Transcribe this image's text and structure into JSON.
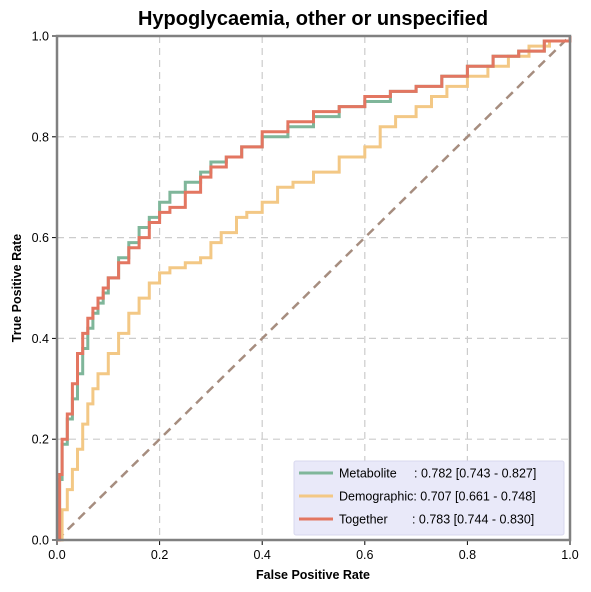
{
  "chart_data": {
    "type": "line",
    "title": "Hypoglycaemia, other or unspecified",
    "xlabel": "False Positive Rate",
    "ylabel": "True Positive Rate",
    "xlim": [
      0,
      1
    ],
    "ylim": [
      0,
      1
    ],
    "xticks": [
      "0.0",
      "0.2",
      "0.4",
      "0.6",
      "0.8",
      "1.0"
    ],
    "yticks": [
      "0.0",
      "0.2",
      "0.4",
      "0.6",
      "0.8",
      "1.0"
    ],
    "grid": true,
    "legend_position": "lower-right",
    "diagonal": {
      "x": [
        0,
        1
      ],
      "y": [
        0,
        1
      ],
      "color": "#a68d7f",
      "style": "dashed"
    },
    "series": [
      {
        "name": "Metabolite",
        "legend_label": "Metabolite     : 0.782 [0.743 - 0.827]",
        "color": "#7fb69a",
        "x": [
          0.0,
          0.005,
          0.01,
          0.02,
          0.03,
          0.04,
          0.05,
          0.06,
          0.07,
          0.08,
          0.09,
          0.1,
          0.12,
          0.14,
          0.16,
          0.18,
          0.2,
          0.22,
          0.25,
          0.28,
          0.3,
          0.33,
          0.36,
          0.4,
          0.45,
          0.5,
          0.55,
          0.6,
          0.65,
          0.7,
          0.75,
          0.8,
          0.85,
          0.9,
          0.95,
          1.0
        ],
        "y": [
          0.0,
          0.12,
          0.19,
          0.24,
          0.28,
          0.33,
          0.38,
          0.42,
          0.45,
          0.47,
          0.49,
          0.52,
          0.56,
          0.59,
          0.62,
          0.64,
          0.67,
          0.69,
          0.71,
          0.73,
          0.75,
          0.76,
          0.78,
          0.8,
          0.82,
          0.84,
          0.86,
          0.87,
          0.89,
          0.9,
          0.92,
          0.94,
          0.96,
          0.97,
          0.99,
          1.0
        ]
      },
      {
        "name": "Demographic",
        "legend_label": "Demographic: 0.707 [0.661 - 0.748]",
        "color": "#f3c885",
        "x": [
          0.0,
          0.01,
          0.02,
          0.03,
          0.04,
          0.05,
          0.06,
          0.07,
          0.08,
          0.1,
          0.12,
          0.14,
          0.16,
          0.18,
          0.2,
          0.22,
          0.25,
          0.28,
          0.3,
          0.32,
          0.35,
          0.37,
          0.4,
          0.43,
          0.46,
          0.5,
          0.55,
          0.6,
          0.63,
          0.66,
          0.7,
          0.73,
          0.76,
          0.8,
          0.84,
          0.88,
          0.92,
          0.96,
          1.0
        ],
        "y": [
          0.0,
          0.06,
          0.1,
          0.14,
          0.18,
          0.23,
          0.27,
          0.3,
          0.33,
          0.37,
          0.41,
          0.45,
          0.48,
          0.51,
          0.53,
          0.54,
          0.55,
          0.56,
          0.59,
          0.61,
          0.64,
          0.65,
          0.67,
          0.7,
          0.71,
          0.73,
          0.76,
          0.78,
          0.82,
          0.84,
          0.86,
          0.88,
          0.9,
          0.92,
          0.94,
          0.96,
          0.98,
          0.99,
          1.0
        ]
      },
      {
        "name": "Together",
        "legend_label": "Together       : 0.783 [0.744 - 0.830]",
        "color": "#e37661",
        "x": [
          0.0,
          0.005,
          0.01,
          0.02,
          0.03,
          0.04,
          0.05,
          0.06,
          0.07,
          0.08,
          0.09,
          0.1,
          0.12,
          0.14,
          0.16,
          0.18,
          0.2,
          0.22,
          0.25,
          0.28,
          0.3,
          0.33,
          0.36,
          0.4,
          0.45,
          0.5,
          0.55,
          0.6,
          0.65,
          0.7,
          0.75,
          0.8,
          0.85,
          0.9,
          0.95,
          1.0
        ],
        "y": [
          0.0,
          0.13,
          0.2,
          0.25,
          0.31,
          0.37,
          0.41,
          0.44,
          0.46,
          0.48,
          0.5,
          0.52,
          0.55,
          0.58,
          0.6,
          0.63,
          0.65,
          0.66,
          0.69,
          0.72,
          0.74,
          0.76,
          0.78,
          0.81,
          0.83,
          0.85,
          0.86,
          0.88,
          0.89,
          0.9,
          0.92,
          0.94,
          0.96,
          0.97,
          0.99,
          1.0
        ]
      }
    ]
  }
}
